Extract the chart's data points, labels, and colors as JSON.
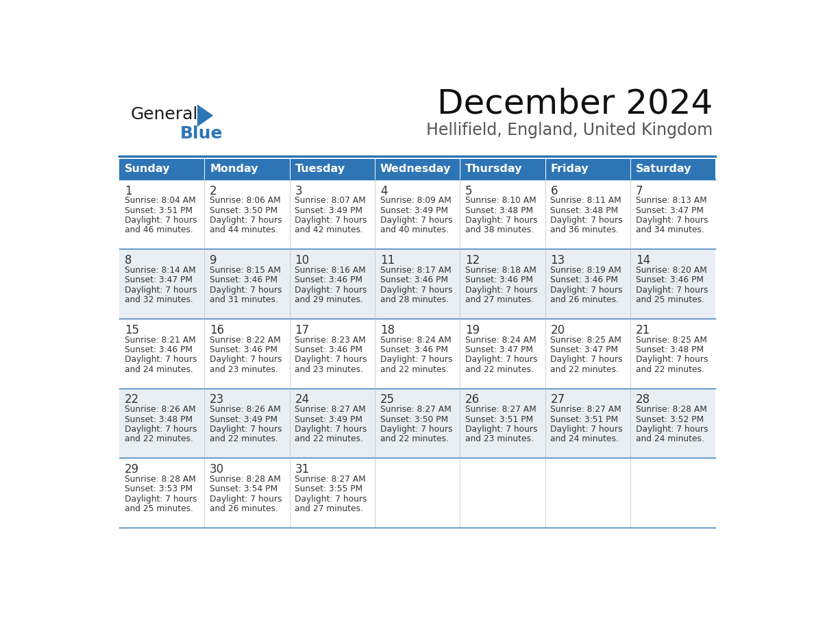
{
  "title": "December 2024",
  "subtitle": "Hellifield, England, United Kingdom",
  "days_of_week": [
    "Sunday",
    "Monday",
    "Tuesday",
    "Wednesday",
    "Thursday",
    "Friday",
    "Saturday"
  ],
  "header_bg": "#2E75B6",
  "header_text": "#FFFFFF",
  "row_bg_odd": "#FFFFFF",
  "row_bg_even": "#E9EEF4",
  "border_color": "#2E75B6",
  "text_color": "#333333",
  "day_num_color": "#333333",
  "logo_general_color": "#1a1a1a",
  "logo_blue_color": "#2E75B6",
  "weeks": [
    [
      {
        "day": 1,
        "sunrise": "8:04 AM",
        "sunset": "3:51 PM",
        "daylight_min": "46"
      },
      {
        "day": 2,
        "sunrise": "8:06 AM",
        "sunset": "3:50 PM",
        "daylight_min": "44"
      },
      {
        "day": 3,
        "sunrise": "8:07 AM",
        "sunset": "3:49 PM",
        "daylight_min": "42"
      },
      {
        "day": 4,
        "sunrise": "8:09 AM",
        "sunset": "3:49 PM",
        "daylight_min": "40"
      },
      {
        "day": 5,
        "sunrise": "8:10 AM",
        "sunset": "3:48 PM",
        "daylight_min": "38"
      },
      {
        "day": 6,
        "sunrise": "8:11 AM",
        "sunset": "3:48 PM",
        "daylight_min": "36"
      },
      {
        "day": 7,
        "sunrise": "8:13 AM",
        "sunset": "3:47 PM",
        "daylight_min": "34"
      }
    ],
    [
      {
        "day": 8,
        "sunrise": "8:14 AM",
        "sunset": "3:47 PM",
        "daylight_min": "32"
      },
      {
        "day": 9,
        "sunrise": "8:15 AM",
        "sunset": "3:46 PM",
        "daylight_min": "31"
      },
      {
        "day": 10,
        "sunrise": "8:16 AM",
        "sunset": "3:46 PM",
        "daylight_min": "29"
      },
      {
        "day": 11,
        "sunrise": "8:17 AM",
        "sunset": "3:46 PM",
        "daylight_min": "28"
      },
      {
        "day": 12,
        "sunrise": "8:18 AM",
        "sunset": "3:46 PM",
        "daylight_min": "27"
      },
      {
        "day": 13,
        "sunrise": "8:19 AM",
        "sunset": "3:46 PM",
        "daylight_min": "26"
      },
      {
        "day": 14,
        "sunrise": "8:20 AM",
        "sunset": "3:46 PM",
        "daylight_min": "25"
      }
    ],
    [
      {
        "day": 15,
        "sunrise": "8:21 AM",
        "sunset": "3:46 PM",
        "daylight_min": "24"
      },
      {
        "day": 16,
        "sunrise": "8:22 AM",
        "sunset": "3:46 PM",
        "daylight_min": "23"
      },
      {
        "day": 17,
        "sunrise": "8:23 AM",
        "sunset": "3:46 PM",
        "daylight_min": "23"
      },
      {
        "day": 18,
        "sunrise": "8:24 AM",
        "sunset": "3:46 PM",
        "daylight_min": "22"
      },
      {
        "day": 19,
        "sunrise": "8:24 AM",
        "sunset": "3:47 PM",
        "daylight_min": "22"
      },
      {
        "day": 20,
        "sunrise": "8:25 AM",
        "sunset": "3:47 PM",
        "daylight_min": "22"
      },
      {
        "day": 21,
        "sunrise": "8:25 AM",
        "sunset": "3:48 PM",
        "daylight_min": "22"
      }
    ],
    [
      {
        "day": 22,
        "sunrise": "8:26 AM",
        "sunset": "3:48 PM",
        "daylight_min": "22"
      },
      {
        "day": 23,
        "sunrise": "8:26 AM",
        "sunset": "3:49 PM",
        "daylight_min": "22"
      },
      {
        "day": 24,
        "sunrise": "8:27 AM",
        "sunset": "3:49 PM",
        "daylight_min": "22"
      },
      {
        "day": 25,
        "sunrise": "8:27 AM",
        "sunset": "3:50 PM",
        "daylight_min": "22"
      },
      {
        "day": 26,
        "sunrise": "8:27 AM",
        "sunset": "3:51 PM",
        "daylight_min": "23"
      },
      {
        "day": 27,
        "sunrise": "8:27 AM",
        "sunset": "3:51 PM",
        "daylight_min": "24"
      },
      {
        "day": 28,
        "sunrise": "8:28 AM",
        "sunset": "3:52 PM",
        "daylight_min": "24"
      }
    ],
    [
      {
        "day": 29,
        "sunrise": "8:28 AM",
        "sunset": "3:53 PM",
        "daylight_min": "25"
      },
      {
        "day": 30,
        "sunrise": "8:28 AM",
        "sunset": "3:54 PM",
        "daylight_min": "26"
      },
      {
        "day": 31,
        "sunrise": "8:27 AM",
        "sunset": "3:55 PM",
        "daylight_min": "27"
      },
      null,
      null,
      null,
      null
    ]
  ]
}
